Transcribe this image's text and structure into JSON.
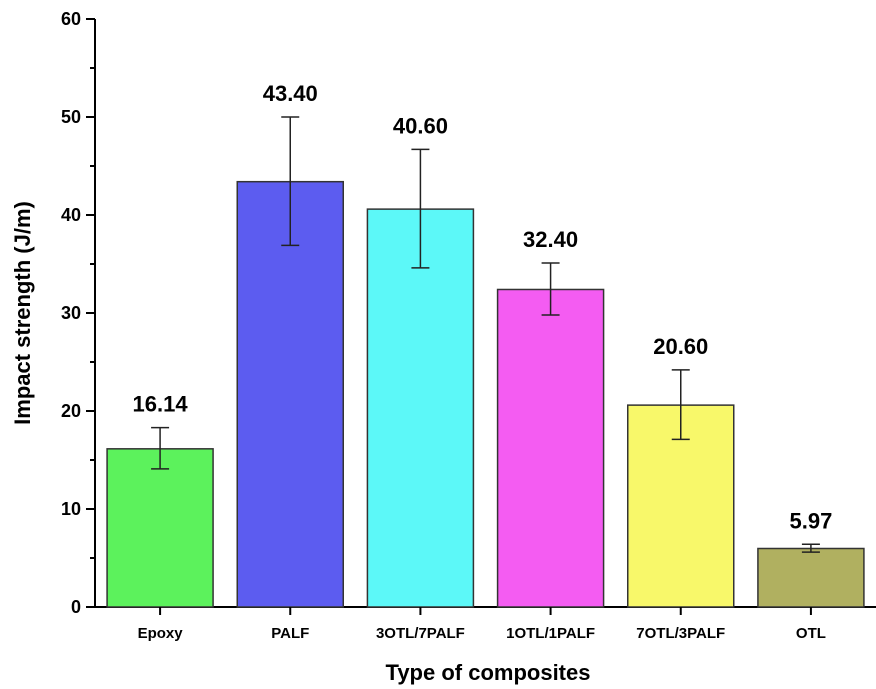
{
  "chart_data": {
    "type": "bar",
    "title": "",
    "xlabel": "Type of composites",
    "ylabel": "Impact strength (J/m)",
    "ylim": [
      0,
      60
    ],
    "yticks": [
      0,
      10,
      20,
      30,
      40,
      50,
      60
    ],
    "categories": [
      "Epoxy",
      "PALF",
      "3OTL/7PALF",
      "1OTL/1PALF",
      "7OTL/3PALF",
      "OTL"
    ],
    "values": [
      16.14,
      43.4,
      40.6,
      32.4,
      20.6,
      5.97
    ],
    "value_labels": [
      "16.14",
      "43.40",
      "40.60",
      "32.40",
      "20.60",
      "5.97"
    ],
    "error_low": [
      14.1,
      36.9,
      34.6,
      29.8,
      17.1,
      5.6
    ],
    "error_high": [
      18.3,
      50.0,
      46.7,
      35.1,
      24.2,
      6.4
    ],
    "colors": [
      "#5cf25c",
      "#5c5cf0",
      "#5cf8f8",
      "#f45cf2",
      "#f8f86a",
      "#b0b060"
    ],
    "grid": false,
    "legend": "none"
  }
}
